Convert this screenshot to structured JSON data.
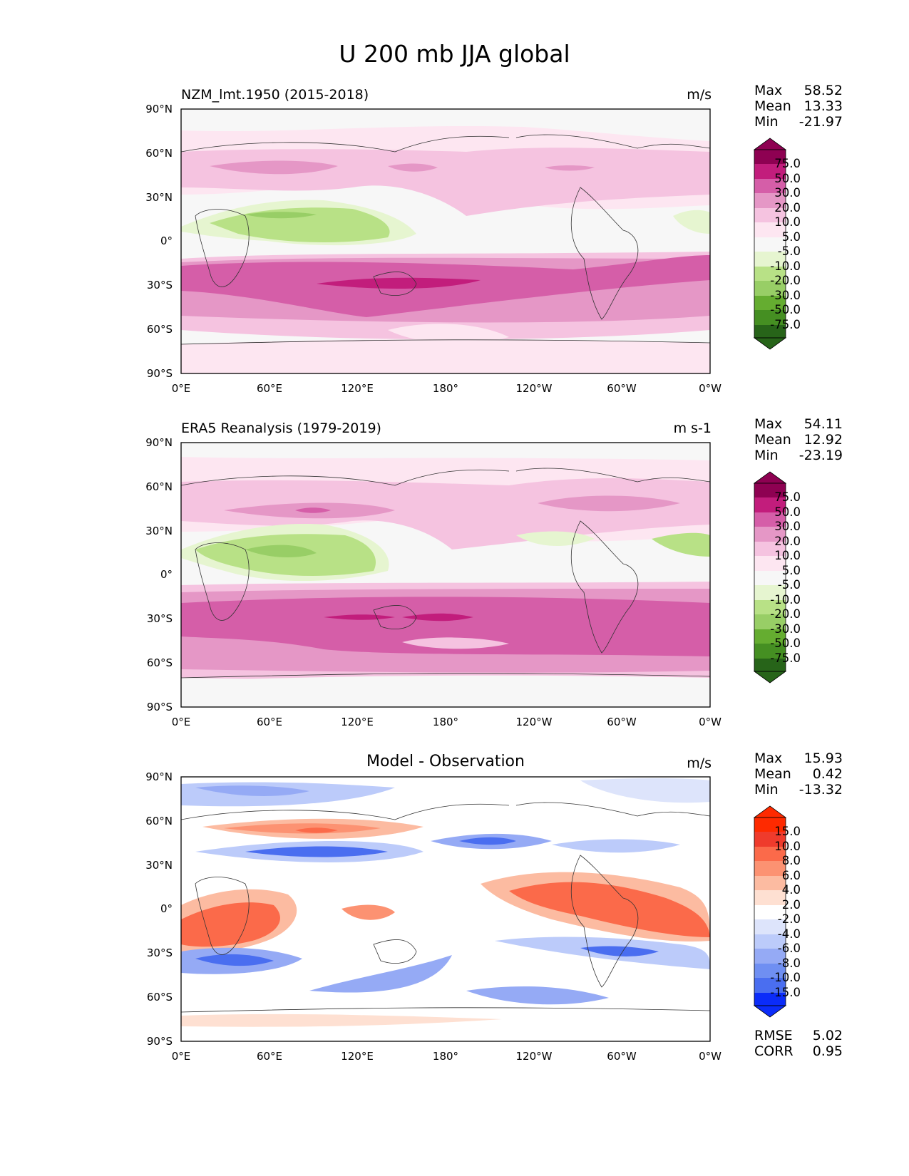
{
  "main_title": "U 200 mb JJA global",
  "colors": {
    "pink": [
      "#fde6f1",
      "#f5c3e0",
      "#e597c6",
      "#d55ea8",
      "#c21d7c",
      "#8e0152"
    ],
    "green": [
      "#e6f5d0",
      "#b8e186",
      "#98ce66",
      "#65ad30",
      "#458f22",
      "#276419"
    ],
    "diff_pos": [
      "#fee0d2",
      "#fcbba1",
      "#fc9272",
      "#fb6a4a",
      "#ef3b2c",
      "#fe2a00"
    ],
    "diff_neg": [
      "#dde4fb",
      "#bccbfa",
      "#95aaf5",
      "#6f8ff2",
      "#4a6ef0",
      "#0b2cf9"
    ]
  },
  "chart_data": [
    {
      "type": "heatmap",
      "title": "NZM_lmt.1950 (2015-2018)",
      "units": "m/s",
      "stats": {
        "max_label": "Max",
        "max": "58.52",
        "mean_label": "Mean",
        "mean": "13.33",
        "min_label": "Min",
        "min": "-21.97"
      },
      "colorbar_levels": [
        "75.0",
        "50.0",
        "30.0",
        "20.0",
        "10.0",
        "5.0",
        "-5.0",
        "-10.0",
        "-20.0",
        "-30.0",
        "-50.0",
        "-75.0"
      ],
      "x_ticks": [
        "0°E",
        "60°E",
        "120°E",
        "180°",
        "120°W",
        "60°W",
        "0°W"
      ],
      "y_ticks": [
        "90°N",
        "60°N",
        "30°N",
        "0°",
        "30°S",
        "60°S",
        "90°S"
      ],
      "xlim": [
        0,
        360
      ],
      "ylim": [
        -90,
        90
      ]
    },
    {
      "type": "heatmap",
      "title": "ERA5 Reanalysis (1979-2019)",
      "units": "m s-1",
      "stats": {
        "max_label": "Max",
        "max": "54.11",
        "mean_label": "Mean",
        "mean": "12.92",
        "min_label": "Min",
        "min": "-23.19"
      },
      "colorbar_levels": [
        "75.0",
        "50.0",
        "30.0",
        "20.0",
        "10.0",
        "5.0",
        "-5.0",
        "-10.0",
        "-20.0",
        "-30.0",
        "-50.0",
        "-75.0"
      ],
      "x_ticks": [
        "0°E",
        "60°E",
        "120°E",
        "180°",
        "120°W",
        "60°W",
        "0°W"
      ],
      "y_ticks": [
        "90°N",
        "60°N",
        "30°N",
        "0°",
        "30°S",
        "60°S",
        "90°S"
      ],
      "xlim": [
        0,
        360
      ],
      "ylim": [
        -90,
        90
      ]
    },
    {
      "type": "heatmap",
      "title": "Model - Observation",
      "units": "m/s",
      "stats": {
        "max_label": "Max",
        "max": "15.93",
        "mean_label": "Mean",
        "mean": "0.42",
        "min_label": "Min",
        "min": "-13.32"
      },
      "colorbar_levels": [
        "15.0",
        "10.0",
        "8.0",
        "6.0",
        "4.0",
        "2.0",
        "-2.0",
        "-4.0",
        "-6.0",
        "-8.0",
        "-10.0",
        "-15.0"
      ],
      "x_ticks": [
        "0°E",
        "60°E",
        "120°E",
        "180°",
        "120°W",
        "60°W",
        "0°W"
      ],
      "y_ticks": [
        "90°N",
        "60°N",
        "30°N",
        "0°",
        "30°S",
        "60°S",
        "90°S"
      ],
      "xlim": [
        0,
        360
      ],
      "ylim": [
        -90,
        90
      ],
      "metrics": {
        "rmse_label": "RMSE",
        "rmse": "5.02",
        "corr_label": "CORR",
        "corr": "0.95"
      }
    }
  ]
}
